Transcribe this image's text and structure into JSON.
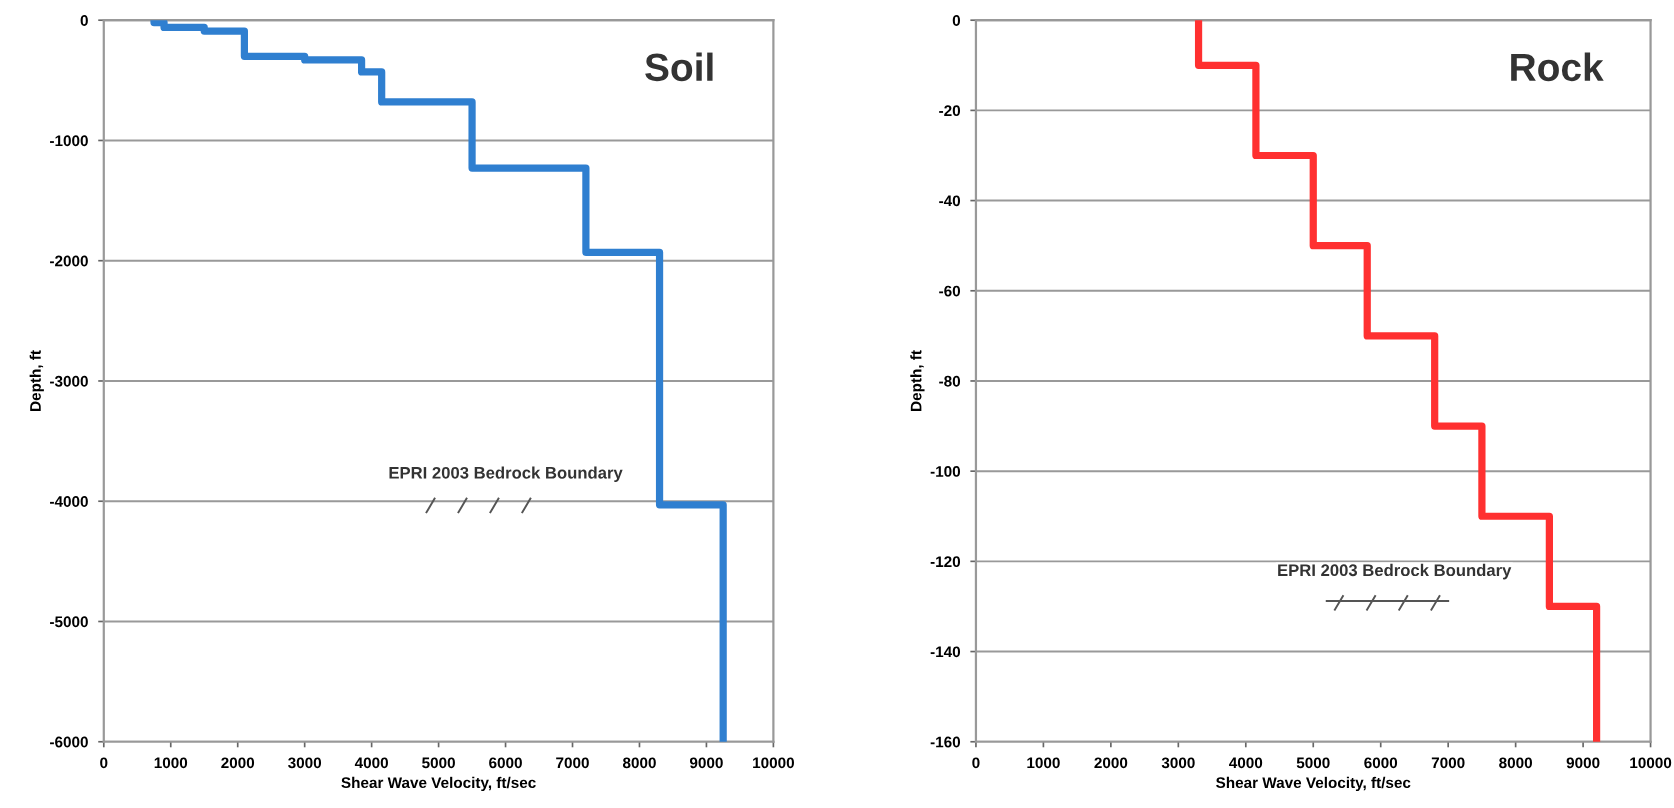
{
  "chart_data": [
    {
      "type": "line",
      "title": "Soil",
      "xlabel": "Shear Wave Velocity, ft/sec",
      "ylabel": "Depth, ft",
      "x": [
        750,
        750,
        900,
        900,
        1500,
        1500,
        2100,
        2100,
        3000,
        3000,
        3850,
        3850,
        4150,
        4150,
        5500,
        5500,
        7200,
        7200,
        8300,
        8300,
        9250,
        9250
      ],
      "series": [
        {
          "color": "#2f7fd0",
          "values": [
            0,
            -20,
            -20,
            -60,
            -60,
            -90,
            -90,
            -300,
            -300,
            -330,
            -330,
            -430,
            -430,
            -680,
            -680,
            -1230,
            -1230,
            -1930,
            -1930,
            -4030,
            -4030,
            -6000
          ]
        }
      ],
      "xlim": [
        0,
        10000
      ],
      "xticks": [
        0,
        1000,
        2000,
        3000,
        4000,
        5000,
        6000,
        7000,
        8000,
        9000,
        10000
      ],
      "ylim": [
        -6000,
        0
      ],
      "yticks": [
        -6000,
        -5000,
        -4000,
        -3000,
        -2000,
        -1000,
        0
      ],
      "grid": "y",
      "line_style": "solid",
      "annotations": [
        "EPRI 2003 Bedrock Boundary"
      ]
    },
    {
      "type": "line",
      "title": "Rock",
      "xlabel": "Shear Wave Velocity, ft/sec",
      "ylabel": "Depth, ft",
      "x": [
        3300,
        3300,
        4150,
        4150,
        5000,
        5000,
        5800,
        5800,
        6800,
        6800,
        7500,
        7500,
        8500,
        8500,
        9200,
        9200
      ],
      "series": [
        {
          "color": "#ff3030",
          "values": [
            0,
            -10,
            -10,
            -30,
            -30,
            -50,
            -50,
            -70,
            -70,
            -90,
            -90,
            -110,
            -110,
            -130,
            -130,
            -160
          ]
        }
      ],
      "xlim": [
        0,
        10000
      ],
      "xticks": [
        0,
        1000,
        2000,
        3000,
        4000,
        5000,
        6000,
        7000,
        8000,
        9000,
        10000
      ],
      "ylim": [
        -160,
        0
      ],
      "yticks": [
        -160,
        -140,
        -120,
        -100,
        -80,
        -60,
        -40,
        -20,
        0
      ],
      "grid": "y",
      "line_style": "solid",
      "annotations": [
        "EPRI 2003 Bedrock Boundary"
      ]
    }
  ]
}
